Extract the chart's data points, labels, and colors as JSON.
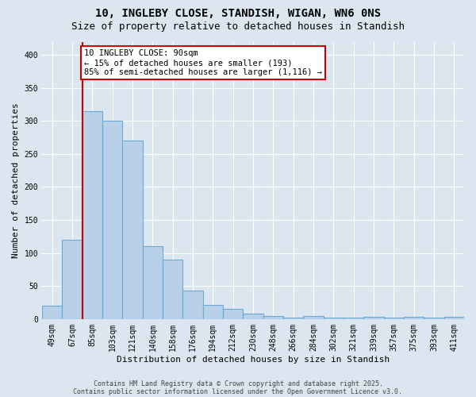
{
  "title_line1": "10, INGLEBY CLOSE, STANDISH, WIGAN, WN6 0NS",
  "title_line2": "Size of property relative to detached houses in Standish",
  "xlabel": "Distribution of detached houses by size in Standish",
  "ylabel": "Number of detached properties",
  "categories": [
    "49sqm",
    "67sqm",
    "85sqm",
    "103sqm",
    "121sqm",
    "140sqm",
    "158sqm",
    "176sqm",
    "194sqm",
    "212sqm",
    "230sqm",
    "248sqm",
    "266sqm",
    "284sqm",
    "302sqm",
    "321sqm",
    "339sqm",
    "357sqm",
    "375sqm",
    "393sqm",
    "411sqm"
  ],
  "values": [
    20,
    120,
    315,
    300,
    270,
    110,
    90,
    43,
    22,
    16,
    8,
    5,
    2,
    5,
    2,
    2,
    4,
    2,
    4,
    2,
    4
  ],
  "bar_color": "#b8d0e8",
  "bar_edge_color": "#6aaad4",
  "vline_x_index": 2,
  "vline_color": "#cc0000",
  "annotation_text": "10 INGLEBY CLOSE: 90sqm\n← 15% of detached houses are smaller (193)\n85% of semi-detached houses are larger (1,116) →",
  "annotation_box_color": "white",
  "annotation_box_edge_color": "#cc0000",
  "annotation_fontsize": 7.5,
  "ylim": [
    0,
    420
  ],
  "yticks": [
    0,
    50,
    100,
    150,
    200,
    250,
    300,
    350,
    400
  ],
  "background_color": "#dce6f0",
  "plot_bg_color": "#dce6f0",
  "footer_line1": "Contains HM Land Registry data © Crown copyright and database right 2025.",
  "footer_line2": "Contains public sector information licensed under the Open Government Licence v3.0.",
  "title_fontsize": 10,
  "subtitle_fontsize": 9,
  "xlabel_fontsize": 8,
  "ylabel_fontsize": 8,
  "tick_fontsize": 7
}
